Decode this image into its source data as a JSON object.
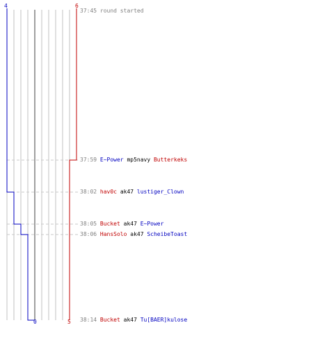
{
  "colors": {
    "blue": "#0000c0",
    "red": "#c00000",
    "gray": "#808080",
    "grid": "#c0c0c0",
    "dashed": "#c8c8c8",
    "center": "#808080"
  },
  "score_labels": {
    "blue_top": "4",
    "red_top": "6",
    "blue_bottom": "0",
    "red_bottom": "5"
  },
  "events": [
    {
      "time": "37:45",
      "text": "round started",
      "kind": "start"
    },
    {
      "time": "37:59",
      "killer": "E~Power",
      "killer_team": "blue",
      "weapon": "mp5navy",
      "victim": "Butterkeks",
      "victim_team": "red"
    },
    {
      "time": "38:02",
      "killer": "hav0c",
      "killer_team": "red",
      "weapon": "ak47",
      "victim": "lustiger_Clown",
      "victim_team": "blue"
    },
    {
      "time": "38:05",
      "killer": "Bucket",
      "killer_team": "red",
      "weapon": "ak47",
      "victim": "E~Power",
      "victim_team": "blue"
    },
    {
      "time": "38:06",
      "killer": "HansSolo",
      "killer_team": "red",
      "weapon": "ak47",
      "victim": "ScheibeToast",
      "victim_team": "blue"
    },
    {
      "time": "38:14",
      "killer": "Bucket",
      "killer_team": "red",
      "weapon": "ak47",
      "victim": "Tu[BAER]kulose",
      "victim_team": "blue"
    }
  ]
}
